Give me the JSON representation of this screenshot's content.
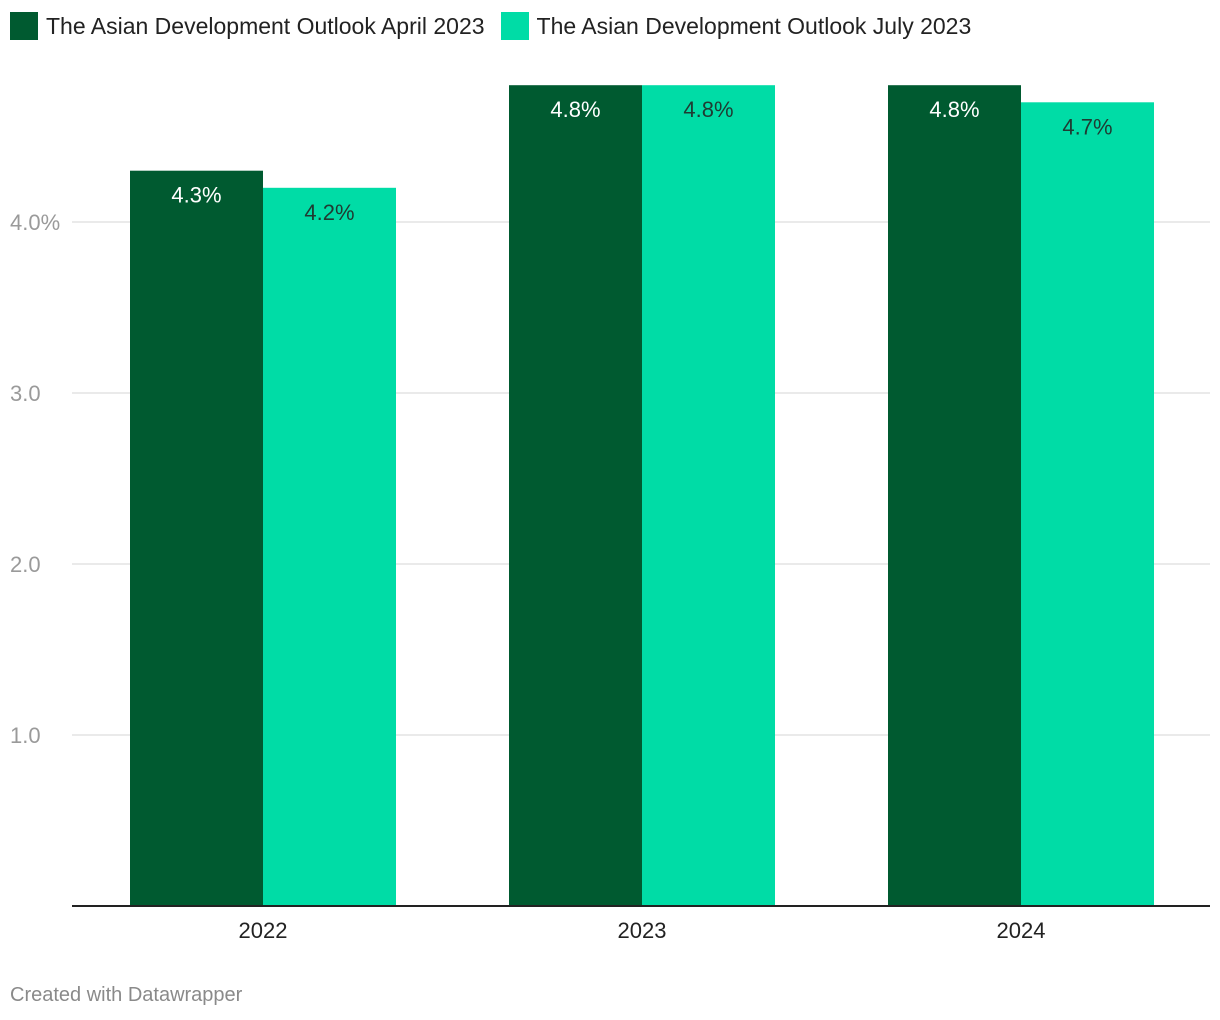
{
  "chart_data": {
    "type": "bar",
    "categories": [
      "2022",
      "2023",
      "2024"
    ],
    "series": [
      {
        "name": "The Asian Development Outlook April 2023",
        "values": [
          4.3,
          4.8,
          4.8
        ],
        "labels": [
          "4.3%",
          "4.8%",
          "4.8%"
        ],
        "color": "#005a30"
      },
      {
        "name": "The Asian Development Outlook July 2023",
        "values": [
          4.2,
          4.8,
          4.7
        ],
        "labels": [
          "4.2%",
          "4.8%",
          "4.7%"
        ],
        "color": "#00dca6"
      }
    ],
    "yticks": [
      1.0,
      2.0,
      3.0,
      4.0
    ],
    "ytick_labels": [
      "1.0",
      "2.0",
      "3.0",
      "4.0%"
    ],
    "ylim": [
      0,
      4.8
    ],
    "grid": true,
    "legend_position": "top-left"
  },
  "footer": {
    "credit": "Created with Datawrapper"
  }
}
